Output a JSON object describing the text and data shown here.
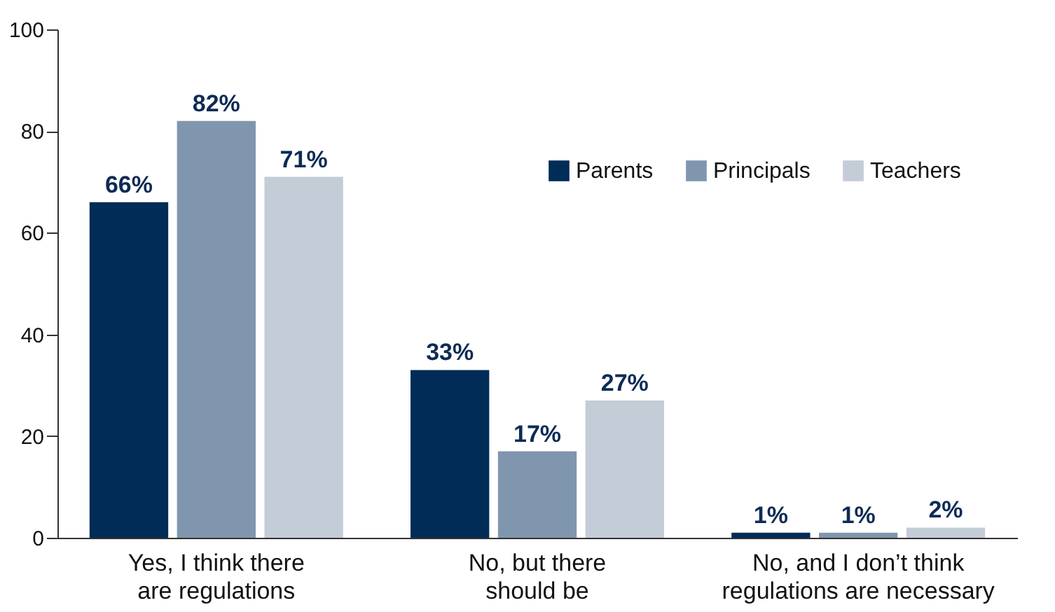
{
  "chart_data": {
    "type": "bar",
    "categories": [
      "Yes, I think there\nare regulations",
      "No, but there\nshould be",
      "No, and I don’t think\nregulations are necessary"
    ],
    "series": [
      {
        "name": "Parents",
        "color": "#002c57",
        "values": [
          66,
          33,
          1
        ],
        "value_labels": [
          "66%",
          "33%",
          "1%"
        ]
      },
      {
        "name": "Principals",
        "color": "#7f96ae",
        "values": [
          82,
          17,
          1
        ],
        "value_labels": [
          "82%",
          "17%",
          "1%"
        ]
      },
      {
        "name": "Teachers",
        "color": "#c3ccd7",
        "values": [
          71,
          27,
          2
        ],
        "value_labels": [
          "71%",
          "27%",
          "2%"
        ]
      }
    ],
    "ylim": [
      0,
      100
    ],
    "yticks": [
      0,
      20,
      40,
      60,
      80,
      100
    ],
    "grid": false,
    "legend": "top right"
  }
}
